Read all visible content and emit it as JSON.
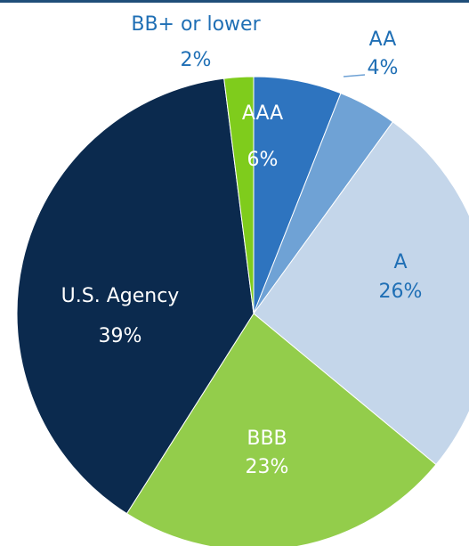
{
  "chart_data": {
    "type": "pie",
    "categories": [
      "AAA",
      "AA",
      "A",
      "BBB",
      "U.S. Agency",
      "BB+ or lower"
    ],
    "values": [
      6,
      4,
      26,
      23,
      39,
      2
    ],
    "value_labels": [
      "6%",
      "4%",
      "26%",
      "23%",
      "39%",
      "2%"
    ],
    "colors": [
      "#2e74bf",
      "#6fa2d5",
      "#c4d6ea",
      "#93cd4b",
      "#0b2a4e",
      "#7fcc1c"
    ]
  }
}
